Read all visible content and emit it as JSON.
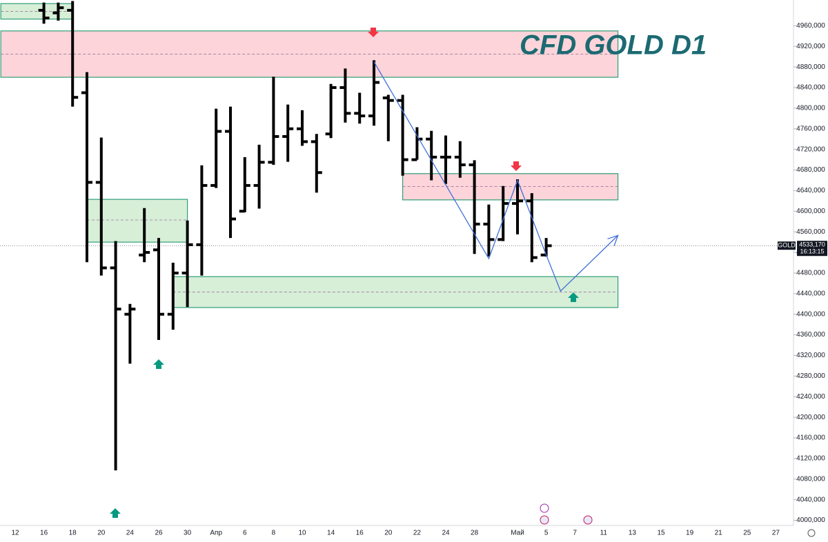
{
  "chart_data": {
    "type": "ohlc",
    "title": "CFD GOLD D1",
    "categories": [
      "12",
      null,
      "16",
      null,
      "18",
      null,
      "20",
      null,
      "24",
      null,
      "26",
      null,
      "30",
      null,
      "Апр",
      null,
      "6",
      null,
      "8",
      null,
      "10",
      null,
      "14",
      null,
      "16",
      null,
      "20",
      null,
      "22",
      null,
      "24",
      null,
      "28",
      null,
      null,
      "Май",
      null,
      "5",
      null,
      "7",
      null,
      "11",
      null,
      "13",
      null,
      "15",
      null,
      "19",
      null,
      "21",
      null,
      "25",
      null,
      "27"
    ],
    "ohlc": {
      "color": "#000000",
      "open": [
        null,
        null,
        4990,
        4985,
        4990,
        4830,
        4656,
        4490,
        4400,
        4515,
        4525,
        4400,
        4480,
        4535,
        4650,
        4755,
        4600,
        4650,
        4695,
        4745,
        4760,
        4735,
        4750,
        4840,
        4790,
        4785,
        4820,
        4815,
        4700,
        4740,
        4705,
        4705,
        4690,
        4575,
        4545,
        4615,
        4620,
        4515,
        null,
        null,
        null,
        null,
        null,
        null,
        null,
        null,
        null,
        null,
        null,
        null,
        null,
        null,
        null,
        null
      ],
      "high": [
        null,
        null,
        5005,
        5005,
        5008,
        4870,
        4743,
        4542,
        4420,
        4606,
        4548,
        4500,
        4582,
        4689,
        4799,
        4803,
        4705,
        4729,
        4861,
        4807,
        4796,
        4750,
        4847,
        4877,
        4830,
        4893,
        4826,
        4826,
        4763,
        4756,
        4747,
        4736,
        4699,
        4613,
        4649,
        4662,
        4635,
        4548,
        null,
        null,
        null,
        null,
        null,
        null,
        null,
        null,
        null,
        null,
        null,
        null,
        null,
        null,
        null,
        null
      ],
      "low": [
        null,
        null,
        4964,
        4970,
        4803,
        4501,
        4475,
        4097,
        4304,
        4501,
        4350,
        4370,
        4414,
        4475,
        4645,
        4548,
        4598,
        4605,
        4690,
        4696,
        4727,
        4636,
        4742,
        4772,
        4770,
        4766,
        4736,
        4669,
        4700,
        4660,
        4653,
        4665,
        4517,
        4512,
        4542,
        4555,
        4501,
        4512,
        null,
        null,
        null,
        null,
        null,
        null,
        null,
        null,
        null,
        null,
        null,
        null,
        null,
        null,
        null,
        null
      ],
      "close": [
        null,
        null,
        4975,
        4995,
        4821,
        4656,
        4490,
        4410,
        4410,
        4520,
        4400,
        4480,
        4535,
        4650,
        4755,
        4585,
        4650,
        4695,
        4745,
        4760,
        4735,
        4675,
        4840,
        4790,
        4785,
        4850,
        4815,
        4700,
        4740,
        4705,
        4705,
        4690,
        4575,
        4545,
        4615,
        4620,
        4510,
        4533,
        null,
        null,
        null,
        null,
        null,
        null,
        null,
        null,
        null,
        null,
        null,
        null,
        null,
        null,
        null,
        null
      ]
    },
    "ylim": [
      3990,
      5010
    ],
    "yticks": [
      {
        "value": 4000,
        "label": "4000,000"
      },
      {
        "value": 4040,
        "label": "4040,000"
      },
      {
        "value": 4080,
        "label": "4080,000"
      },
      {
        "value": 4120,
        "label": "4120,000"
      },
      {
        "value": 4160,
        "label": "4160,000"
      },
      {
        "value": 4200,
        "label": "4200,000"
      },
      {
        "value": 4240,
        "label": "4240,000"
      },
      {
        "value": 4280,
        "label": "4280,000"
      },
      {
        "value": 4320,
        "label": "4320,000"
      },
      {
        "value": 4360,
        "label": "4360,000"
      },
      {
        "value": 4400,
        "label": "4400,000"
      },
      {
        "value": 4440,
        "label": "4440,000"
      },
      {
        "value": 4480,
        "label": "4480,000"
      },
      {
        "value": 4520,
        "label": "4520,000"
      },
      {
        "value": 4560,
        "label": "4560,000"
      },
      {
        "value": 4600,
        "label": "4600,000"
      },
      {
        "value": 4640,
        "label": "4640,000"
      },
      {
        "value": 4680,
        "label": "4680,000"
      },
      {
        "value": 4720,
        "label": "4720,000"
      },
      {
        "value": 4760,
        "label": "4760,000"
      },
      {
        "value": 4800,
        "label": "4800,000"
      },
      {
        "value": 4840,
        "label": "4840,000"
      },
      {
        "value": 4880,
        "label": "4880,000"
      },
      {
        "value": 4920,
        "label": "4920,000"
      },
      {
        "value": 4960,
        "label": "4960,000"
      }
    ],
    "zones": [
      {
        "start": -1,
        "end": 4,
        "top": 5003,
        "bottom": 4973,
        "mid": 4988,
        "color": "green"
      },
      {
        "start": -1,
        "end": 42,
        "top": 4950,
        "bottom": 4860,
        "mid": 4905,
        "color": "red"
      },
      {
        "start": 5,
        "end": 12,
        "top": 4623,
        "bottom": 4540,
        "mid": 4583,
        "color": "green"
      },
      {
        "start": 27,
        "end": 42,
        "top": 4673,
        "bottom": 4622,
        "mid": 4648,
        "color": "red"
      },
      {
        "start": 11,
        "end": 42,
        "top": 4473,
        "bottom": 4413,
        "mid": 4443,
        "color": "green"
      }
    ],
    "trend": {
      "color": "#3f6fd8",
      "x": [
        25,
        33,
        35,
        37,
        38,
        42
      ],
      "y": [
        4890,
        4508,
        4660,
        4515,
        4445,
        4553
      ]
    },
    "last_price": {
      "symbol": "GOLD",
      "value": 4533.17,
      "label": "4533,170",
      "countdown": "16:13:15"
    }
  }
}
